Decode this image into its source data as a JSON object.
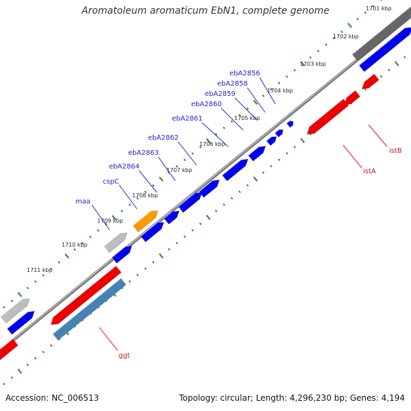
{
  "title": "Aromatoleum aromaticum EbN1, complete genome",
  "footer": {
    "accession": "Accession: NC_006513",
    "summary": "Topology: circular; Length: 4,296,230 bp; Genes: 4,194"
  },
  "colors": {
    "backbone": "#7a7a7a",
    "tick": "#2f8f2f",
    "gene_blue": "#0000ee",
    "gene_red": "#ee0000",
    "gene_orange": "#ff9900",
    "gene_grey": "#bdbdbd",
    "gene_dark_grey": "#666666",
    "gene_steel": "#4682b4",
    "label_blue": "#1f24c8",
    "label_red": "#dd1111"
  },
  "scale_labels": [
    "1701 kbp",
    "1702 kbp",
    "1703 kbp",
    "1704 kbp",
    "1705 kbp",
    "1706 kbp",
    "1707 kbp",
    "1708 kbp",
    "1709 kbp",
    "1710 kbp",
    "1711 kbp"
  ],
  "gene_labels": [
    {
      "name": "ebA2856",
      "color": "label_blue"
    },
    {
      "name": "ebA2858",
      "color": "label_blue"
    },
    {
      "name": "ebA2859",
      "color": "label_blue"
    },
    {
      "name": "ebA2860",
      "color": "label_blue"
    },
    {
      "name": "ebA2861",
      "color": "label_blue"
    },
    {
      "name": "ebA2862",
      "color": "label_blue"
    },
    {
      "name": "ebA2863",
      "color": "label_blue"
    },
    {
      "name": "ebA2864",
      "color": "label_blue"
    },
    {
      "name": "cspC",
      "color": "label_blue"
    },
    {
      "name": "maa",
      "color": "label_blue"
    },
    {
      "name": "istB",
      "color": "label_red"
    },
    {
      "name": "istA",
      "color": "label_red"
    },
    {
      "name": "ggt",
      "color": "label_red"
    }
  ]
}
